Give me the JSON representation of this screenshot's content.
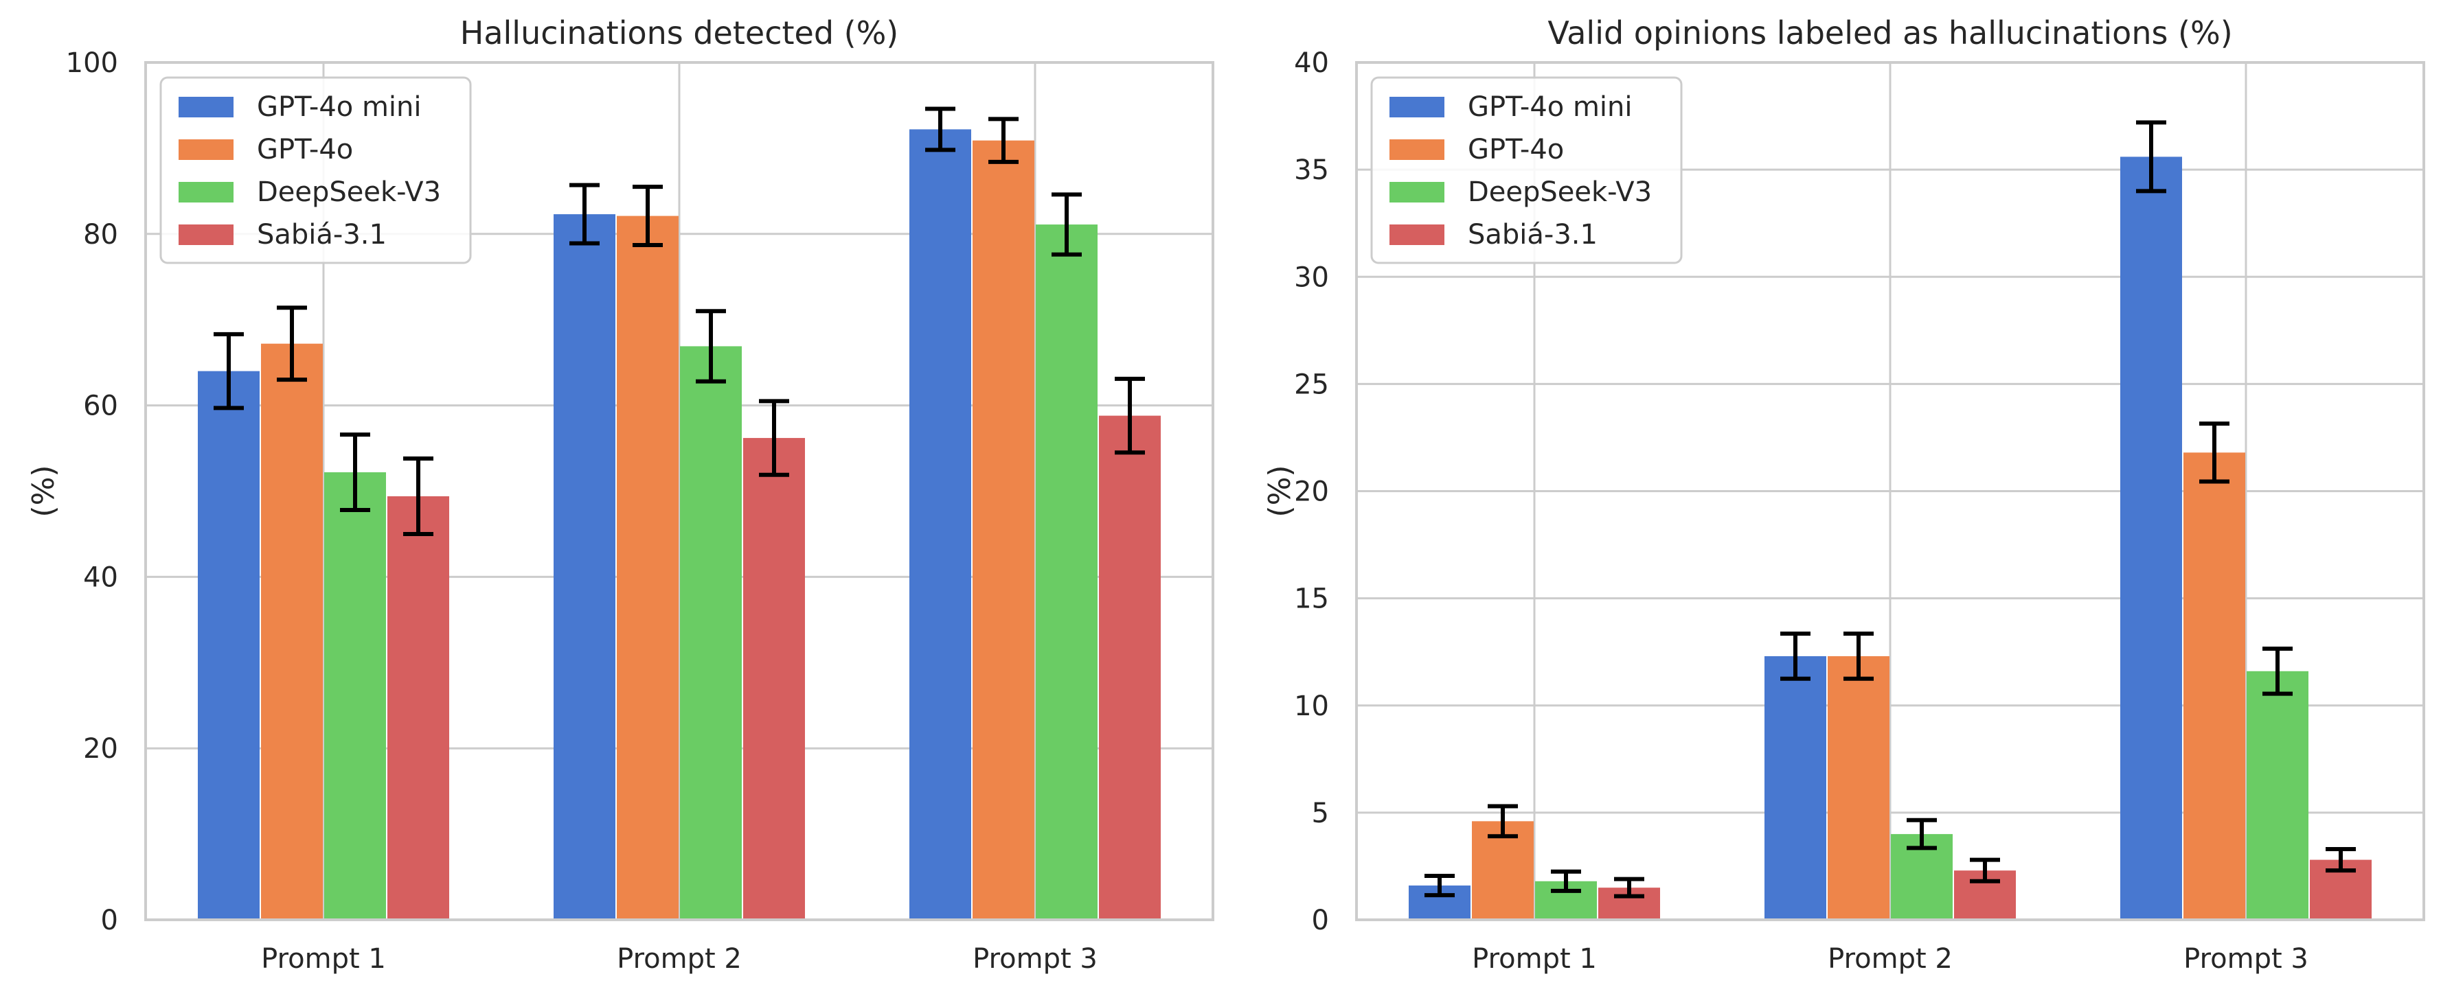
{
  "chart_data": [
    {
      "type": "bar",
      "title": "Hallucinations detected (%)",
      "xlabel": "",
      "ylabel": "(%)",
      "categories": [
        "Prompt 1",
        "Prompt 2",
        "Prompt 3"
      ],
      "ylim": [
        0,
        100
      ],
      "yticks": [
        0,
        20,
        40,
        60,
        80,
        100
      ],
      "grid": true,
      "legend": "top-left",
      "series": [
        {
          "name": "GPT-4o mini",
          "color": "#4878d0",
          "values": [
            64.0,
            82.3,
            92.2
          ],
          "errors": [
            4.3,
            3.4,
            2.4
          ]
        },
        {
          "name": "GPT-4o",
          "color": "#ee854a",
          "values": [
            67.2,
            82.1,
            90.9
          ],
          "errors": [
            4.2,
            3.4,
            2.5
          ]
        },
        {
          "name": "DeepSeek-V3",
          "color": "#6acc64",
          "values": [
            52.2,
            66.9,
            81.1
          ],
          "errors": [
            4.4,
            4.1,
            3.5
          ]
        },
        {
          "name": "Sabiá-3.1",
          "color": "#d65f5f",
          "values": [
            49.4,
            56.2,
            58.8
          ],
          "errors": [
            4.4,
            4.3,
            4.3
          ]
        }
      ]
    },
    {
      "type": "bar",
      "title": "Valid opinions labeled as hallucinations (%)",
      "xlabel": "",
      "ylabel": "(%)",
      "categories": [
        "Prompt 1",
        "Prompt 2",
        "Prompt 3"
      ],
      "ylim": [
        0,
        40
      ],
      "yticks": [
        0,
        5,
        10,
        15,
        20,
        25,
        30,
        35,
        40
      ],
      "grid": true,
      "legend": "top-left",
      "series": [
        {
          "name": "GPT-4o mini",
          "color": "#4878d0",
          "values": [
            1.6,
            12.3,
            35.6
          ],
          "errors": [
            0.45,
            1.05,
            1.6
          ]
        },
        {
          "name": "GPT-4o",
          "color": "#ee854a",
          "values": [
            4.6,
            12.3,
            21.8
          ],
          "errors": [
            0.7,
            1.05,
            1.35
          ]
        },
        {
          "name": "DeepSeek-V3",
          "color": "#6acc64",
          "values": [
            1.8,
            4.0,
            11.6
          ],
          "errors": [
            0.45,
            0.65,
            1.05
          ]
        },
        {
          "name": "Sabiá-3.1",
          "color": "#d65f5f",
          "values": [
            1.5,
            2.3,
            2.8
          ],
          "errors": [
            0.4,
            0.5,
            0.5
          ]
        }
      ]
    }
  ]
}
